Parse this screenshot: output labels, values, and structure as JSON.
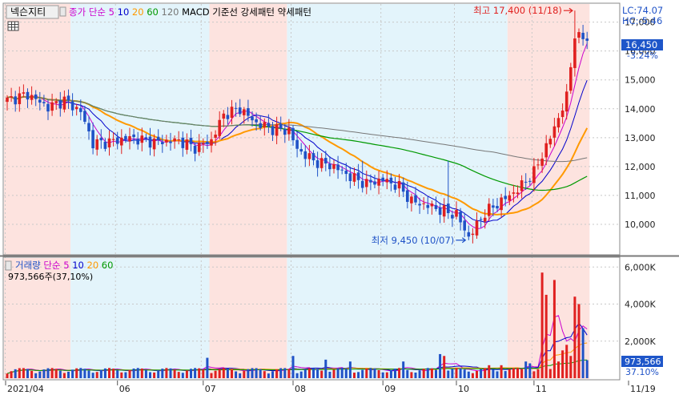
{
  "header": {
    "stock_name": "넥슨지티",
    "ma_label": "종가 단순",
    "ma_periods": [
      "5",
      "10",
      "20",
      "60",
      "120"
    ],
    "ma_colors": [
      "#cc00cc",
      "#0000cc",
      "#ff9900",
      "#009900",
      "#777777"
    ],
    "indicators": [
      "MACD",
      "기준선",
      "강세패턴",
      "약세패턴"
    ]
  },
  "volume_header": {
    "label": "거래량",
    "ma_label": "단순",
    "ma_periods": [
      "5",
      "10",
      "20",
      "60"
    ],
    "value_text": "973,566주(37,10%)"
  },
  "right_panel": {
    "lc": "LC:74.07",
    "hc": "HC:-5.46",
    "price_badge": "16,450",
    "price_change": "-3.24%",
    "volume_badge": "973,566",
    "volume_change": "37.10%"
  },
  "colors": {
    "up": "#e0201f",
    "down": "#1f52c7",
    "band_pink": "#fde3df",
    "band_blue": "#e3f4fb",
    "badge": "#1e56c9"
  },
  "chart_data": [
    {
      "type": "candlestick",
      "title": "",
      "y_ticks": [
        10000,
        11000,
        12000,
        13000,
        14000,
        15000,
        16000,
        17000
      ],
      "y_tick_labels": [
        "10,000",
        "11,000",
        "12,000",
        "13,000",
        "14,000",
        "15,000",
        "16,000",
        "17,000"
      ],
      "ylim": [
        9000,
        17600
      ],
      "annotations": [
        {
          "text": "최고 17,400 (11/18)",
          "index": 139,
          "value": 17400
        },
        {
          "text": "최저 9,450 (10/07)",
          "index": 113,
          "value": 9450
        }
      ]
    },
    {
      "type": "bar",
      "title": "",
      "y_ticks": [
        2000000,
        4000000,
        6000000
      ],
      "y_tick_labels": [
        "2,000K",
        "4,000K",
        "6,000K"
      ],
      "ylim": [
        0,
        6400000
      ]
    }
  ],
  "x_axis": {
    "labels": [
      {
        "text": "2021/04",
        "index": 0
      },
      {
        "text": "06",
        "index": 27
      },
      {
        "text": "07",
        "index": 48
      },
      {
        "text": "08",
        "index": 70
      },
      {
        "text": "09",
        "index": 92
      },
      {
        "text": "10",
        "index": 110
      },
      {
        "text": "11",
        "index": 129
      },
      {
        "text": "11/19",
        "index": 152
      }
    ]
  }
}
